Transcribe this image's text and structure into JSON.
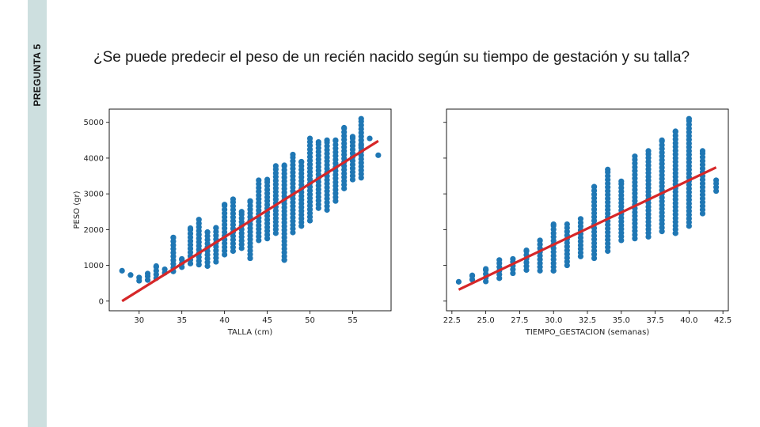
{
  "slide": {
    "section_label": "PREGUNTA 5",
    "question": "¿Se puede predecir el peso de un recién nacido según su tiempo de gestación y su talla?"
  },
  "colors": {
    "sidebar": "#cddfdf",
    "points": "#1f77b4",
    "fit_line": "#d62728"
  },
  "chart_data": [
    {
      "type": "scatter",
      "xlabel": "TALLA (cm)",
      "ylabel": "PESO (gr)",
      "xlim": [
        26.5,
        59.5
      ],
      "ylim": [
        -270,
        5370
      ],
      "xticks": [
        30,
        35,
        40,
        45,
        50,
        55
      ],
      "xtick_labels": [
        "30",
        "35",
        "40",
        "45",
        "50",
        "55"
      ],
      "yticks": [
        0,
        1000,
        2000,
        3000,
        4000,
        5000
      ],
      "ytick_labels": [
        "0",
        "1000",
        "2000",
        "3000",
        "4000",
        "5000"
      ],
      "fit_line": {
        "x": [
          28,
          58
        ],
        "y": [
          0,
          4480
        ]
      },
      "groups": [
        {
          "x": 28,
          "min": 850,
          "max": 850
        },
        {
          "x": 29,
          "min": 730,
          "max": 730
        },
        {
          "x": 30,
          "min": 570,
          "max": 660
        },
        {
          "x": 31,
          "min": 590,
          "max": 770
        },
        {
          "x": 32,
          "min": 640,
          "max": 980
        },
        {
          "x": 33,
          "min": 790,
          "max": 890
        },
        {
          "x": 34,
          "min": 830,
          "max": 1780
        },
        {
          "x": 35,
          "min": 950,
          "max": 1180
        },
        {
          "x": 36,
          "min": 1050,
          "max": 2040
        },
        {
          "x": 37,
          "min": 1020,
          "max": 2280
        },
        {
          "x": 38,
          "min": 980,
          "max": 1930
        },
        {
          "x": 39,
          "min": 1100,
          "max": 2050
        },
        {
          "x": 40,
          "min": 1300,
          "max": 2700
        },
        {
          "x": 41,
          "min": 1400,
          "max": 2850
        },
        {
          "x": 42,
          "min": 1480,
          "max": 2500
        },
        {
          "x": 43,
          "min": 1200,
          "max": 2800
        },
        {
          "x": 44,
          "min": 1700,
          "max": 3380
        },
        {
          "x": 45,
          "min": 1750,
          "max": 3400
        },
        {
          "x": 46,
          "min": 1900,
          "max": 3780
        },
        {
          "x": 47,
          "min": 1150,
          "max": 3800
        },
        {
          "x": 48,
          "min": 1920,
          "max": 4100
        },
        {
          "x": 49,
          "min": 2100,
          "max": 3900
        },
        {
          "x": 50,
          "min": 2250,
          "max": 4550
        },
        {
          "x": 51,
          "min": 2600,
          "max": 4450
        },
        {
          "x": 52,
          "min": 2550,
          "max": 4500
        },
        {
          "x": 53,
          "min": 2800,
          "max": 4500
        },
        {
          "x": 54,
          "min": 3150,
          "max": 4850
        },
        {
          "x": 55,
          "min": 3400,
          "max": 4600
        },
        {
          "x": 56,
          "min": 3450,
          "max": 5100
        },
        {
          "x": 57,
          "min": 4550,
          "max": 4550
        },
        {
          "x": 58,
          "min": 4080,
          "max": 4080
        }
      ],
      "extra_points": [
        {
          "x": 47,
          "y": 1150
        },
        {
          "x": 43,
          "y": 1200
        },
        {
          "x": 56,
          "y": 4350
        },
        {
          "x": 55,
          "y": 4450
        }
      ]
    },
    {
      "type": "scatter",
      "xlabel": "TIEMPO_GESTACION (semanas)",
      "ylabel": "",
      "xlim": [
        22.1,
        42.9
      ],
      "ylim": [
        -270,
        5370
      ],
      "xticks": [
        22.5,
        25.0,
        27.5,
        30.0,
        32.5,
        35.0,
        37.5,
        40.0,
        42.5
      ],
      "xtick_labels": [
        "22.5",
        "25.0",
        "27.5",
        "30.0",
        "32.5",
        "35.0",
        "37.5",
        "40.0",
        "42.5"
      ],
      "yticks": [
        0,
        1000,
        2000,
        3000,
        4000,
        5000
      ],
      "ytick_labels": [
        "",
        "",
        "",
        "",
        "",
        ""
      ],
      "fit_line": {
        "x": [
          23,
          42
        ],
        "y": [
          320,
          3740
        ]
      },
      "groups": [
        {
          "x": 23,
          "min": 540,
          "max": 540
        },
        {
          "x": 24,
          "min": 600,
          "max": 720
        },
        {
          "x": 25,
          "min": 550,
          "max": 900
        },
        {
          "x": 26,
          "min": 640,
          "max": 1150
        },
        {
          "x": 27,
          "min": 780,
          "max": 1180
        },
        {
          "x": 28,
          "min": 870,
          "max": 1420
        },
        {
          "x": 29,
          "min": 850,
          "max": 1700
        },
        {
          "x": 30,
          "min": 850,
          "max": 2150
        },
        {
          "x": 31,
          "min": 1000,
          "max": 2150
        },
        {
          "x": 32,
          "min": 1250,
          "max": 2300
        },
        {
          "x": 33,
          "min": 1200,
          "max": 3200
        },
        {
          "x": 34,
          "min": 1400,
          "max": 3680
        },
        {
          "x": 35,
          "min": 1700,
          "max": 3350
        },
        {
          "x": 36,
          "min": 1750,
          "max": 4050
        },
        {
          "x": 37,
          "min": 1800,
          "max": 4200
        },
        {
          "x": 38,
          "min": 1950,
          "max": 4500
        },
        {
          "x": 39,
          "min": 1900,
          "max": 4750
        },
        {
          "x": 40,
          "min": 2100,
          "max": 5100
        },
        {
          "x": 41,
          "min": 2450,
          "max": 4200
        },
        {
          "x": 42,
          "min": 3080,
          "max": 3380
        }
      ],
      "extra_points": [
        {
          "x": 30,
          "y": 850
        },
        {
          "x": 39,
          "y": 1900
        }
      ]
    }
  ]
}
